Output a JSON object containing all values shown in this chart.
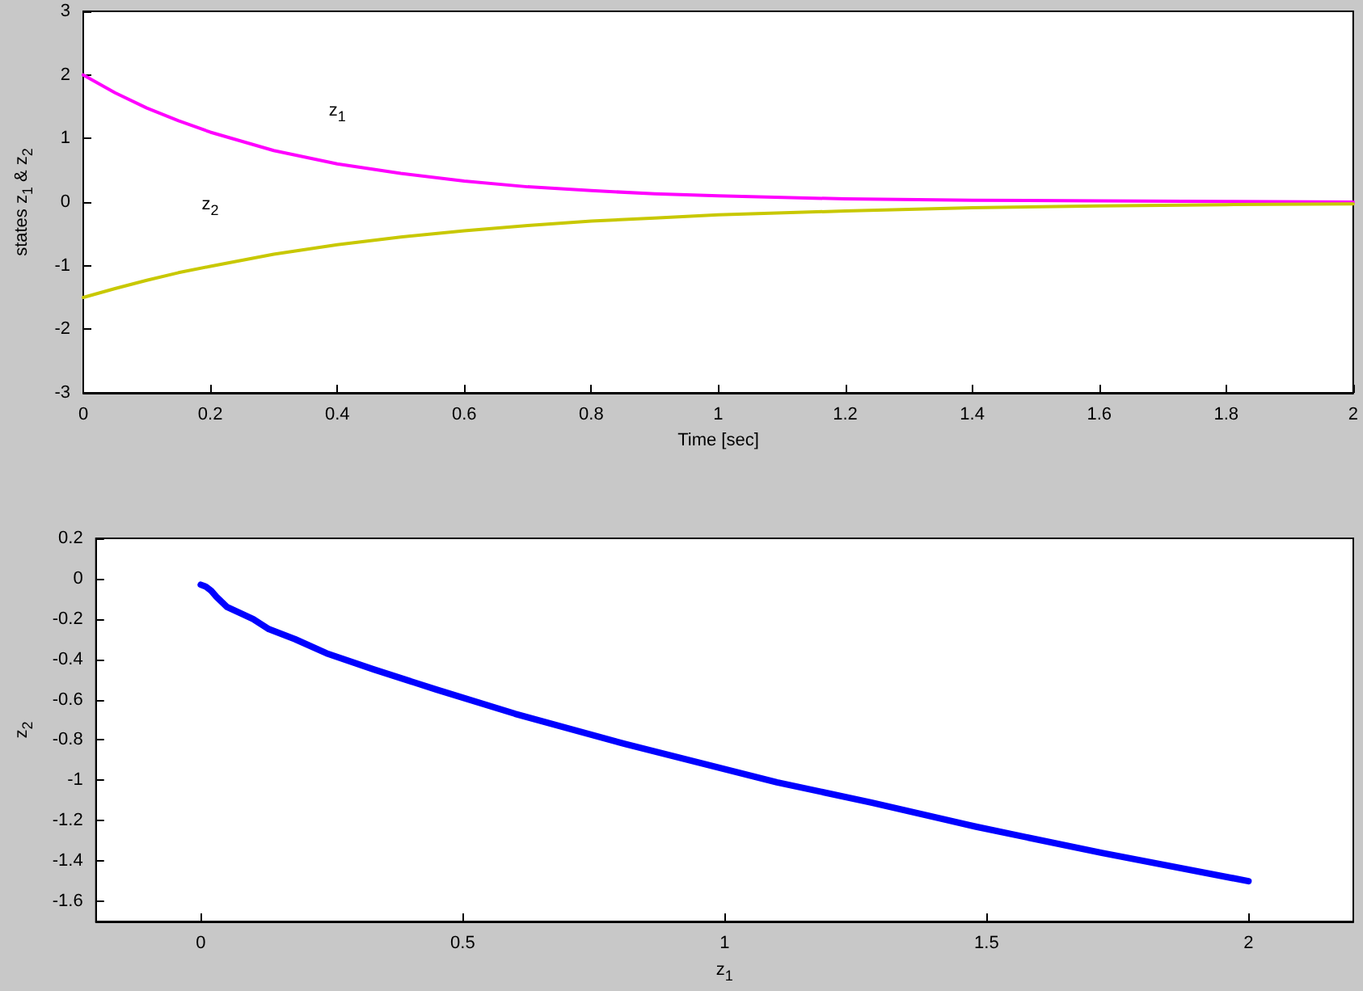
{
  "chart_data": [
    {
      "type": "line",
      "xlabel": "Time [sec]",
      "ylabel": "states z$_{1}$ & z$_{2}$",
      "x": [
        0,
        0.05,
        0.1,
        0.15,
        0.2,
        0.3,
        0.4,
        0.5,
        0.6,
        0.7,
        0.8,
        0.9,
        1.0,
        1.2,
        1.4,
        1.6,
        1.8,
        2.0
      ],
      "series": [
        {
          "name": "z$_{1}$",
          "color": "#ff00ff",
          "values": [
            2.0,
            1.72,
            1.48,
            1.28,
            1.1,
            0.81,
            0.6,
            0.45,
            0.33,
            0.24,
            0.18,
            0.13,
            0.1,
            0.05,
            0.03,
            0.02,
            0.01,
            0.0
          ]
        },
        {
          "name": "z$_{2}$",
          "color": "#c8c800",
          "values": [
            -1.5,
            -1.36,
            -1.23,
            -1.11,
            -1.01,
            -0.82,
            -0.67,
            -0.55,
            -0.45,
            -0.37,
            -0.3,
            -0.25,
            -0.2,
            -0.14,
            -0.09,
            -0.06,
            -0.04,
            -0.03
          ]
        }
      ],
      "xlim": [
        0,
        2
      ],
      "xticks": [
        0,
        0.2,
        0.4,
        0.6,
        0.8,
        1,
        1.2,
        1.4,
        1.6,
        1.8,
        2
      ],
      "ylim": [
        -3,
        3
      ],
      "yticks": [
        -3,
        -2,
        -1,
        0,
        1,
        2,
        3
      ]
    },
    {
      "type": "line",
      "xlabel": "z$_{1}$",
      "ylabel": "z$_{2}$",
      "series": [
        {
          "color": "#0000ff",
          "x": [
            2.0,
            1.72,
            1.48,
            1.28,
            1.1,
            0.81,
            0.6,
            0.45,
            0.33,
            0.24,
            0.18,
            0.13,
            0.1,
            0.05,
            0.03,
            0.02,
            0.01,
            0.0
          ],
          "values": [
            -1.5,
            -1.36,
            -1.23,
            -1.11,
            -1.01,
            -0.82,
            -0.67,
            -0.55,
            -0.45,
            -0.37,
            -0.3,
            -0.25,
            -0.2,
            -0.14,
            -0.09,
            -0.06,
            -0.04,
            -0.03
          ]
        }
      ],
      "xlim": [
        -0.2,
        2.2
      ],
      "xticks": [
        0,
        0.5,
        1,
        1.5,
        2
      ],
      "ylim": [
        -1.7,
        0.2
      ],
      "yticks": [
        -1.6,
        -1.4,
        -1.2,
        -1,
        -0.8,
        -0.6,
        -0.4,
        -0.2,
        0,
        0.2
      ]
    }
  ]
}
